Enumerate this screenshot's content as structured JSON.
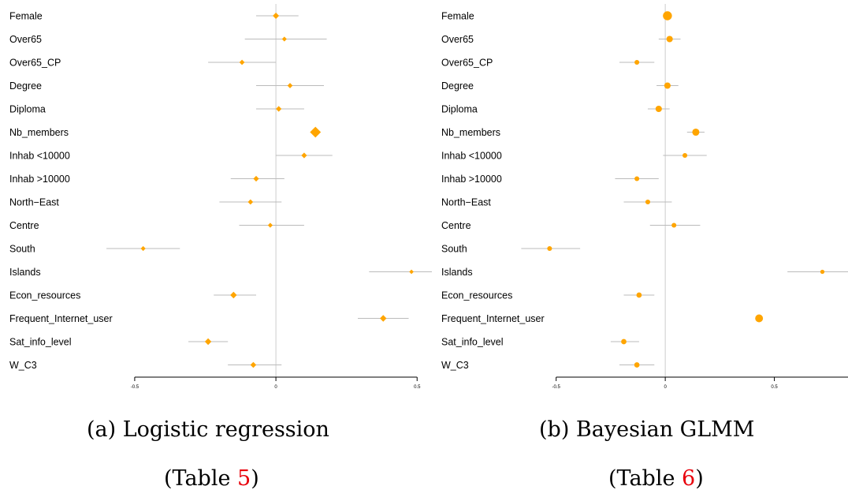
{
  "chart_data": [
    {
      "type": "scatter",
      "subtype": "forest-plot",
      "categories": [
        "Female",
        "Over65",
        "Over65_CP",
        "Degree",
        "Diploma",
        "Nb_members",
        "Inhab <10000",
        "Inhab >10000",
        "North−East",
        "Centre",
        "South",
        "Islands",
        "Econ_resources",
        "Frequent_Internet_user",
        "Sat_info_level",
        "W_C3"
      ],
      "estimates": [
        0.0,
        0.03,
        -0.12,
        0.05,
        0.01,
        0.14,
        0.1,
        -0.07,
        -0.09,
        -0.02,
        -0.47,
        0.48,
        -0.15,
        0.38,
        -0.24,
        -0.08
      ],
      "ci_low": [
        -0.07,
        -0.11,
        -0.24,
        -0.07,
        -0.07,
        0.14,
        0.0,
        -0.16,
        -0.2,
        -0.13,
        -0.6,
        0.33,
        -0.22,
        0.29,
        -0.31,
        -0.17
      ],
      "ci_high": [
        0.08,
        0.18,
        0.0,
        0.17,
        0.1,
        0.14,
        0.2,
        0.03,
        0.02,
        0.1,
        -0.34,
        0.63,
        -0.07,
        0.47,
        -0.17,
        0.02
      ],
      "marker_weight": [
        1,
        0.6,
        0.7,
        0.7,
        0.8,
        3,
        0.8,
        0.8,
        0.7,
        0.6,
        0.6,
        0.5,
        1.1,
        1.1,
        1.1,
        0.9
      ],
      "marker_shape": "diamond",
      "xlim": [
        -0.55,
        0.65
      ],
      "xticks": [
        -0.5,
        0,
        0.5
      ],
      "xtick_labels": [
        "-0.5",
        "0",
        "0.5"
      ],
      "reference_line": 0,
      "color": "#FFA500",
      "ci_color": "#BBBBBB"
    },
    {
      "type": "scatter",
      "subtype": "forest-plot",
      "categories": [
        "Female",
        "Over65",
        "Over65_CP",
        "Degree",
        "Diploma",
        "Nb_members",
        "Inhab <10000",
        "Inhab >10000",
        "North−East",
        "Centre",
        "South",
        "Islands",
        "Econ_resources",
        "Frequent_Internet_user",
        "Sat_info_level",
        "W_C3"
      ],
      "estimates": [
        0.01,
        0.02,
        -0.13,
        0.01,
        -0.03,
        0.14,
        0.09,
        -0.13,
        -0.08,
        0.04,
        -0.53,
        0.72,
        -0.12,
        0.43,
        -0.19,
        -0.13
      ],
      "ci_low": [
        0.01,
        -0.03,
        -0.21,
        -0.04,
        -0.08,
        0.1,
        -0.01,
        -0.23,
        -0.19,
        -0.07,
        -0.66,
        0.56,
        -0.19,
        0.43,
        -0.25,
        -0.21
      ],
      "ci_high": [
        0.01,
        0.07,
        -0.05,
        0.06,
        0.02,
        0.18,
        0.19,
        -0.03,
        0.03,
        0.16,
        -0.39,
        0.88,
        -0.05,
        0.43,
        -0.12,
        -0.05
      ],
      "marker_weight": [
        3.2,
        1.6,
        0.9,
        1.6,
        1.6,
        2.0,
        0.9,
        0.9,
        0.9,
        0.9,
        0.9,
        0.7,
        1.1,
        2.4,
        1.1,
        1.1
      ],
      "marker_shape": "circle",
      "xlim": [
        -0.6,
        1.0
      ],
      "xticks": [
        -0.5,
        0,
        0.5,
        1
      ],
      "xtick_labels": [
        "-0.5",
        "0",
        "0.5",
        "1"
      ],
      "reference_line": 0,
      "color": "#FFA500",
      "ci_color": "#BBBBBB"
    }
  ],
  "captions": {
    "a_text": "(a) Logistic regression",
    "a_table_prefix": "(Table ",
    "a_table_ref": "5",
    "a_table_suffix": ")",
    "b_text": "(b) Bayesian GLMM",
    "b_table_prefix": "(Table ",
    "b_table_ref": "6",
    "b_table_suffix": ")"
  }
}
